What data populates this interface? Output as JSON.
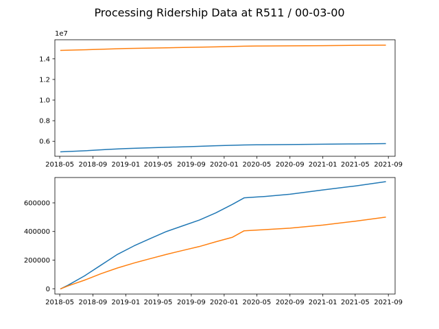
{
  "title": "Processing Ridership Data at R511 / 00-03-00",
  "colors": {
    "series1": "#1f77b4",
    "series2": "#ff7f0e",
    "axis": "#000000"
  },
  "chart_data": [
    {
      "type": "line",
      "panel": "top",
      "offset_label": "1e7",
      "xlim": [
        "2018-04-13",
        "2021-09-26"
      ],
      "ylim": [
        4.55,
        15.85
      ],
      "ytick_scale": 1000000.0,
      "yticks": [
        6,
        8,
        10,
        12,
        14
      ],
      "ytick_labels": [
        "0.6",
        "0.8",
        "1.0",
        "1.2",
        "1.4"
      ],
      "xticks": [
        "2018-05-01",
        "2018-09-01",
        "2019-01-01",
        "2019-05-01",
        "2019-09-01",
        "2020-01-01",
        "2020-05-01",
        "2020-09-01",
        "2021-01-01",
        "2021-05-01",
        "2021-09-01"
      ],
      "xtick_labels": [
        "2018-05",
        "2018-09",
        "2019-01",
        "2019-05",
        "2019-09",
        "2020-01",
        "2020-05",
        "2020-09",
        "2021-01",
        "2021-05",
        "2021-09"
      ],
      "series": [
        {
          "color": "#1f77b4",
          "x": [
            "2018-05-05",
            "2018-08-01",
            "2018-11-01",
            "2019-01-01",
            "2019-03-01",
            "2019-06-01",
            "2019-09-01",
            "2019-12-01",
            "2020-03-15",
            "2020-05-01",
            "2020-09-01",
            "2021-01-01",
            "2021-05-01",
            "2021-08-21"
          ],
          "y": [
            4.98,
            5.08,
            5.22,
            5.3,
            5.35,
            5.42,
            5.49,
            5.57,
            5.65,
            5.66,
            5.69,
            5.72,
            5.75,
            5.78
          ]
        },
        {
          "color": "#ff7f0e",
          "x": [
            "2018-05-05",
            "2018-08-01",
            "2018-11-01",
            "2019-01-01",
            "2019-06-01",
            "2019-12-01",
            "2020-03-15",
            "2020-05-01",
            "2020-09-01",
            "2021-01-01",
            "2021-05-01",
            "2021-08-21"
          ],
          "y": [
            14.82,
            14.88,
            14.95,
            15.0,
            15.07,
            15.16,
            15.23,
            15.24,
            15.26,
            15.28,
            15.31,
            15.33
          ]
        }
      ]
    },
    {
      "type": "line",
      "panel": "bottom",
      "xlim": [
        "2018-04-13",
        "2021-09-26"
      ],
      "ylim": [
        -37000,
        777000
      ],
      "ytick_scale": 1,
      "yticks": [
        0,
        200000,
        400000,
        600000
      ],
      "ytick_labels": [
        "0",
        "200000",
        "400000",
        "600000"
      ],
      "xticks": [
        "2018-05-01",
        "2018-09-01",
        "2019-01-01",
        "2019-05-01",
        "2019-09-01",
        "2020-01-01",
        "2020-05-01",
        "2020-09-01",
        "2021-01-01",
        "2021-05-01",
        "2021-09-01"
      ],
      "xtick_labels": [
        "2018-05",
        "2018-09",
        "2019-01",
        "2019-05",
        "2019-09",
        "2020-01",
        "2020-05",
        "2020-09",
        "2021-01",
        "2021-05",
        "2021-09"
      ],
      "series": [
        {
          "color": "#1f77b4",
          "x": [
            "2018-05-05",
            "2018-06-01",
            "2018-08-01",
            "2018-10-01",
            "2018-12-01",
            "2019-02-01",
            "2019-04-01",
            "2019-06-01",
            "2019-08-01",
            "2019-10-01",
            "2019-12-01",
            "2020-02-01",
            "2020-03-15",
            "2020-06-01",
            "2020-09-01",
            "2021-01-01",
            "2021-05-01",
            "2021-08-21"
          ],
          "y": [
            0,
            25000,
            90000,
            165000,
            240000,
            300000,
            350000,
            400000,
            440000,
            480000,
            530000,
            590000,
            635000,
            645000,
            660000,
            690000,
            718000,
            748000
          ]
        },
        {
          "color": "#ff7f0e",
          "x": [
            "2018-05-05",
            "2018-06-01",
            "2018-08-01",
            "2018-10-01",
            "2018-12-01",
            "2019-02-01",
            "2019-04-01",
            "2019-06-01",
            "2019-08-01",
            "2019-10-01",
            "2019-12-01",
            "2020-02-01",
            "2020-03-15",
            "2020-06-01",
            "2020-09-01",
            "2021-01-01",
            "2021-05-01",
            "2021-08-21"
          ],
          "y": [
            0,
            20000,
            60000,
            105000,
            145000,
            180000,
            210000,
            240000,
            268000,
            295000,
            328000,
            360000,
            405000,
            413000,
            423000,
            445000,
            472000,
            500000
          ]
        }
      ]
    }
  ]
}
